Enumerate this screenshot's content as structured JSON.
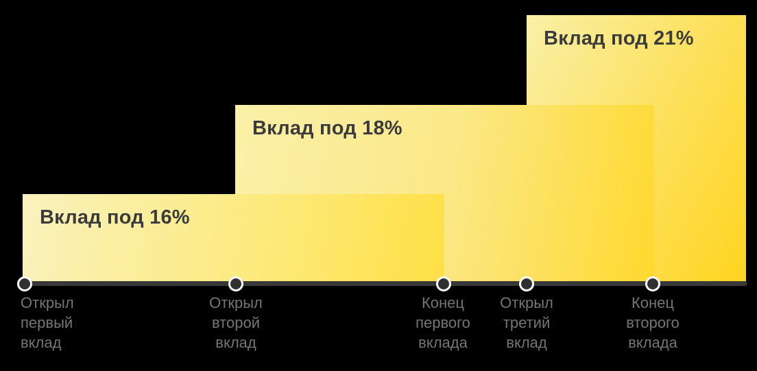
{
  "background_color": "#000000",
  "chart_data": {
    "type": "bar",
    "title": "",
    "description": "Timeline of three savings deposits with rising interest rates; bar height encodes the rate, bar span encodes the deposit lifetime across timeline events",
    "bars": [
      {
        "label": "Вклад под 16%",
        "rate_percent": 16,
        "start_event_index": 0,
        "end_event_index": 2,
        "color_start": "#FAF2BD",
        "color_end": "#FFE046"
      },
      {
        "label": "Вклад под 18%",
        "rate_percent": 18,
        "start_event_index": 1,
        "end_event_index": 4,
        "color_start": "#FAF0A8",
        "color_end": "#FFD92E"
      },
      {
        "label": "Вклад под 21%",
        "rate_percent": 21,
        "start_event_index": 3,
        "end_event_index": null,
        "color_start": "#FAF0A8",
        "color_end": "#FFD41F"
      }
    ],
    "x_events": [
      {
        "text": "Открыл первый вклад",
        "lines": [
          "Открыл",
          "первый",
          "вклад"
        ]
      },
      {
        "text": "Открыл второй вклад",
        "lines": [
          "Открыл",
          "второй",
          "вклад"
        ]
      },
      {
        "text": "Конец первого вклада",
        "lines": [
          "Конец",
          "первого",
          "вклада"
        ]
      },
      {
        "text": "Открыл третий вклад",
        "lines": [
          "Открыл",
          "третий",
          "вклад"
        ]
      },
      {
        "text": "Конец второго вклада",
        "lines": [
          "Конец",
          "второго",
          "вклада"
        ]
      }
    ],
    "axis": {
      "line_color": "#383838",
      "marker_fill_color": "#303030",
      "marker_ring_color": "#FFFFFF",
      "label_color": "#757575",
      "bar_label_color": "#3B3B3B",
      "grid": false,
      "legend": false
    }
  }
}
